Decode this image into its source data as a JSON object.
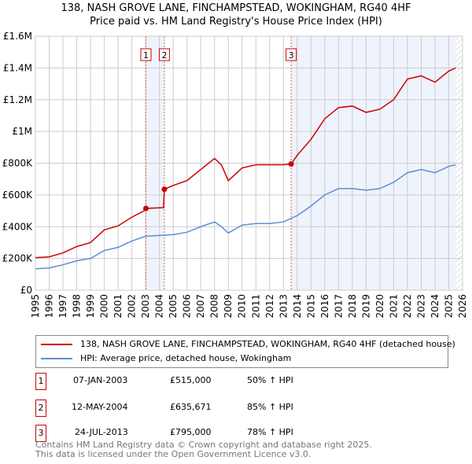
{
  "title": "138, NASH GROVE LANE, FINCHAMPSTEAD, WOKINGHAM, RG40 4HF",
  "subtitle": "Price paid vs. HM Land Registry's House Price Index (HPI)",
  "chart_data": {
    "type": "line",
    "title": "138, NASH GROVE LANE, FINCHAMPSTEAD, WOKINGHAM, RG40 4HF",
    "subtitle": "Price paid vs. HM Land Registry's House Price Index (HPI)",
    "xlim": [
      1995,
      2026
    ],
    "ylim": [
      0,
      1600000
    ],
    "x_ticks": [
      "1995",
      "1996",
      "1997",
      "1998",
      "1999",
      "2000",
      "2001",
      "2002",
      "2003",
      "2004",
      "2005",
      "2006",
      "2007",
      "2008",
      "2009",
      "2010",
      "2011",
      "2012",
      "2013",
      "2014",
      "2015",
      "2016",
      "2017",
      "2018",
      "2019",
      "2020",
      "2021",
      "2022",
      "2023",
      "2024",
      "2025",
      "2026"
    ],
    "y_ticks": [
      {
        "v": 0,
        "label": "£0"
      },
      {
        "v": 200000,
        "label": "£200K"
      },
      {
        "v": 400000,
        "label": "£400K"
      },
      {
        "v": 600000,
        "label": "£600K"
      },
      {
        "v": 800000,
        "label": "£800K"
      },
      {
        "v": 1000000,
        "label": "£1M"
      },
      {
        "v": 1200000,
        "label": "£1.2M"
      },
      {
        "v": 1400000,
        "label": "£1.4M"
      },
      {
        "v": 1600000,
        "label": "£1.6M"
      }
    ],
    "grid": true,
    "series": [
      {
        "name": "138, NASH GROVE LANE, FINCHAMPSTEAD, WOKINGHAM, RG40 4HF (detached house)",
        "color": "#cc0000",
        "x": [
          1995,
          1996,
          1997,
          1998,
          1999,
          2000,
          2001,
          2002,
          2003,
          2003.02,
          2004.3,
          2004.36,
          2005,
          2006,
          2007,
          2008,
          2008.5,
          2009,
          2010,
          2011,
          2012,
          2013,
          2013.56,
          2014,
          2015,
          2016,
          2017,
          2018,
          2019,
          2020,
          2021,
          2022,
          2023,
          2024,
          2025,
          2025.5
        ],
        "y": [
          205000,
          210000,
          235000,
          275000,
          300000,
          380000,
          405000,
          460000,
          505000,
          515000,
          520000,
          635671,
          660000,
          690000,
          760000,
          830000,
          790000,
          690000,
          770000,
          790000,
          790000,
          790000,
          795000,
          850000,
          950000,
          1080000,
          1150000,
          1160000,
          1120000,
          1140000,
          1200000,
          1330000,
          1350000,
          1310000,
          1380000,
          1400000
        ]
      },
      {
        "name": "HPI: Average price, detached house, Wokingham",
        "color": "#5b8fd4",
        "x": [
          1995,
          1996,
          1997,
          1998,
          1999,
          2000,
          2001,
          2002,
          2003,
          2004,
          2005,
          2006,
          2007,
          2008,
          2008.5,
          2009,
          2010,
          2011,
          2012,
          2013,
          2014,
          2015,
          2016,
          2017,
          2018,
          2019,
          2020,
          2021,
          2022,
          2023,
          2024,
          2025,
          2025.5
        ],
        "y": [
          135000,
          140000,
          160000,
          185000,
          200000,
          250000,
          270000,
          310000,
          340000,
          345000,
          350000,
          365000,
          400000,
          430000,
          400000,
          360000,
          410000,
          420000,
          420000,
          430000,
          470000,
          530000,
          600000,
          640000,
          640000,
          630000,
          640000,
          680000,
          740000,
          760000,
          740000,
          780000,
          790000
        ]
      }
    ],
    "sales": [
      {
        "n": "1",
        "x": 2003.02,
        "y": 515000,
        "date": "07-JAN-2003",
        "price": "£515,000",
        "hpi": "50% ↑ HPI"
      },
      {
        "n": "2",
        "x": 2004.36,
        "y": 635671,
        "date": "12-MAY-2004",
        "price": "£635,671",
        "hpi": "85% ↑ HPI"
      },
      {
        "n": "3",
        "x": 2013.56,
        "y": 795000,
        "date": "24-JUL-2013",
        "price": "£795,000",
        "hpi": "78% ↑ HPI"
      }
    ],
    "forecast_start": 2025.5
  },
  "legend": {
    "red": "138, NASH GROVE LANE, FINCHAMPSTEAD, WOKINGHAM, RG40 4HF (detached house)",
    "blue": "HPI: Average price, detached house, Wokingham"
  },
  "footer": [
    "Contains HM Land Registry data © Crown copyright and database right 2025.",
    "This data is licensed under the Open Government Licence v3.0."
  ]
}
